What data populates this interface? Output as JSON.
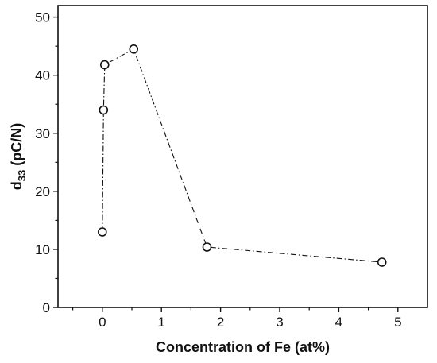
{
  "chart_data": {
    "type": "line",
    "xlabel": "Concentration of Fe (at%)",
    "ylabel_main": "d",
    "ylabel_sub": "33",
    "ylabel_unit": " (pC/N)",
    "xlim": [
      -0.75,
      5.5
    ],
    "ylim": [
      0,
      52
    ],
    "xticks": [
      0,
      1,
      2,
      3,
      4,
      5
    ],
    "yticks": [
      0,
      10,
      20,
      30,
      40,
      50
    ],
    "grid": false,
    "legend": "none",
    "line_style": "dash-dot",
    "marker": "open-circle",
    "colors": {
      "line": "#111111",
      "marker_fill": "#ffffff",
      "marker_stroke": "#111111"
    },
    "series": [
      {
        "x": [
          0.0,
          0.02,
          0.04,
          0.53,
          1.77,
          4.73
        ],
        "y": [
          13.0,
          34.0,
          41.8,
          44.5,
          10.4,
          7.8
        ]
      }
    ]
  }
}
